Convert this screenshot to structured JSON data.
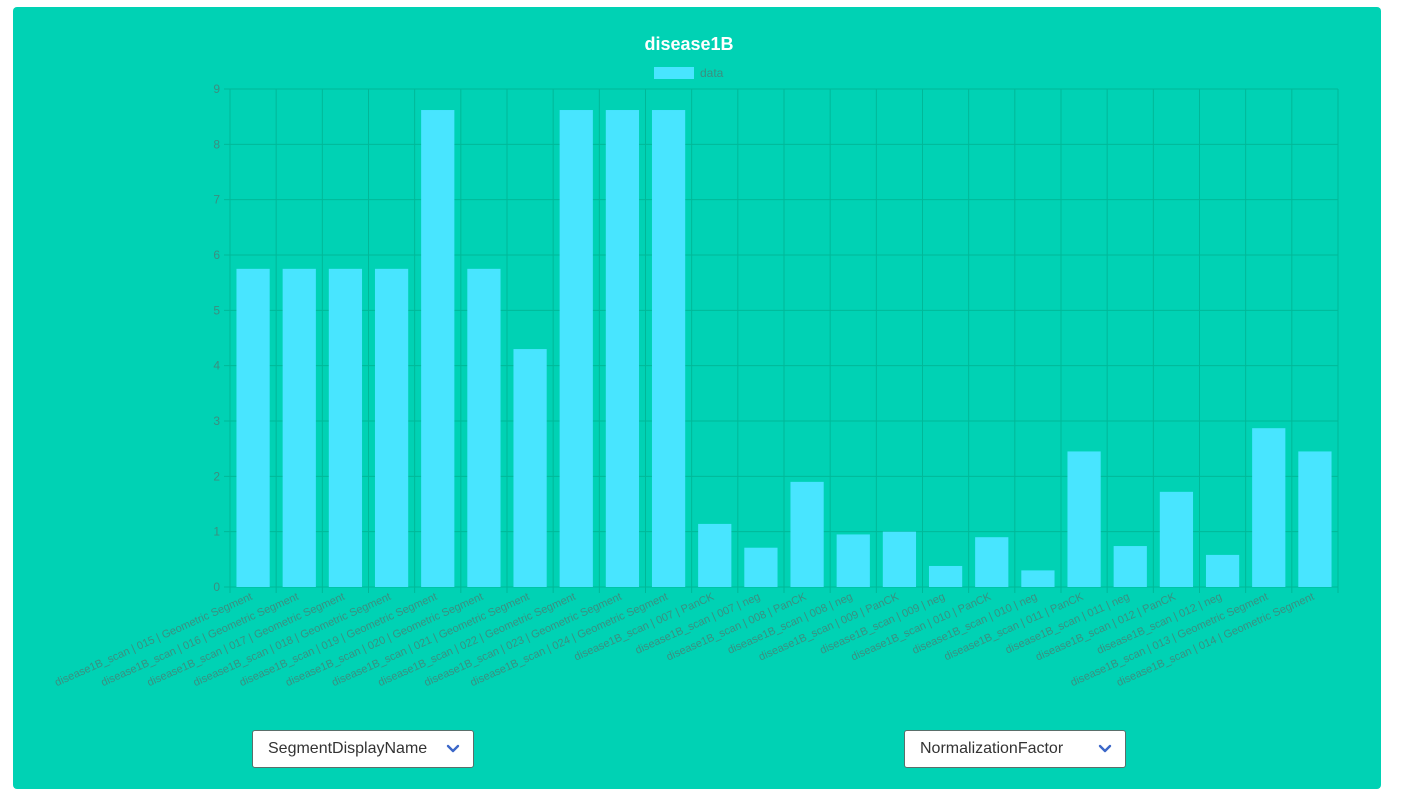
{
  "theme": {
    "panel_bg": "#00d2b4",
    "bar_color": "#48e5ff",
    "grid_color": "#00b898",
    "axis_text_color": "#3a8f80",
    "chevron_color": "#3c67c8"
  },
  "controls": {
    "x_select": {
      "value": "SegmentDisplayName",
      "icon": "chevron-down-icon"
    },
    "y_select": {
      "value": "NormalizationFactor",
      "icon": "chevron-down-icon"
    }
  },
  "chart_data": {
    "type": "bar",
    "title": "disease1B",
    "legend_position": "top",
    "grid": true,
    "ylim": [
      0,
      9
    ],
    "yticks": [
      0,
      1,
      2,
      3,
      4,
      5,
      6,
      7,
      8,
      9
    ],
    "categories": [
      "disease1B_scan | 015 | Geometric Segment",
      "disease1B_scan | 016 | Geometric Segment",
      "disease1B_scan | 017 | Geometric Segment",
      "disease1B_scan | 018 | Geometric Segment",
      "disease1B_scan | 019 | Geometric Segment",
      "disease1B_scan | 020 | Geometric Segment",
      "disease1B_scan | 021 | Geometric Segment",
      "disease1B_scan | 022 | Geometric Segment",
      "disease1B_scan | 023 | Geometric Segment",
      "disease1B_scan | 024 | Geometric Segment",
      "disease1B_scan | 007 | PanCK",
      "disease1B_scan | 007 | neg",
      "disease1B_scan | 008 | PanCK",
      "disease1B_scan | 008 | neg",
      "disease1B_scan | 009 | PanCK",
      "disease1B_scan | 009 | neg",
      "disease1B_scan | 010 | PanCK",
      "disease1B_scan | 010 | neg",
      "disease1B_scan | 011 | PanCK",
      "disease1B_scan | 011 | neg",
      "disease1B_scan | 012 | PanCK",
      "disease1B_scan | 012 | neg",
      "disease1B_scan | 013 | Geometric Segment",
      "disease1B_scan | 014 | Geometric Segment"
    ],
    "series": [
      {
        "name": "data",
        "values": [
          5.75,
          5.75,
          5.75,
          5.75,
          8.62,
          5.75,
          4.3,
          8.62,
          8.62,
          8.62,
          1.14,
          0.71,
          1.9,
          0.95,
          1.0,
          0.38,
          0.9,
          0.3,
          2.45,
          0.74,
          1.72,
          0.58,
          2.87,
          2.45
        ]
      }
    ]
  }
}
